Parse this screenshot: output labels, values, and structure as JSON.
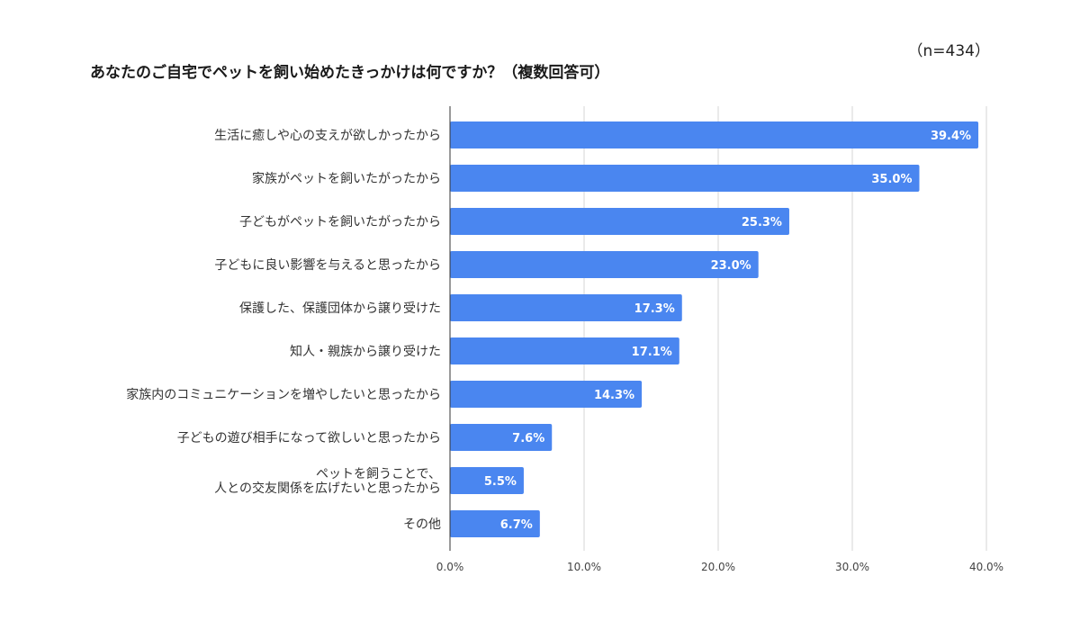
{
  "chart_data": {
    "type": "bar",
    "orientation": "horizontal",
    "title": "あなたのご自宅でペットを飼い始めたきっかけは何ですか？（複数回答可）",
    "sample_size": "（n=434）",
    "bar_color": "#4a86f0",
    "categories": [
      [
        "生活に癒しや心の支えが欲しかったから"
      ],
      [
        "家族がペットを飼いたがったから"
      ],
      [
        "子どもがペットを飼いたがったから"
      ],
      [
        "子どもに良い影響を与えると思ったから"
      ],
      [
        "保護した、保護団体から譲り受けた"
      ],
      [
        "知人・親族から譲り受けた"
      ],
      [
        "家族内のコミュニケーションを増やしたいと思ったから"
      ],
      [
        "子どもの遊び相手になって欲しいと思ったから"
      ],
      [
        "ペットを飼うことで、",
        "人との交友関係を広げたいと思ったから"
      ],
      [
        "その他"
      ]
    ],
    "values": [
      39.4,
      35.0,
      25.3,
      23.0,
      17.3,
      17.1,
      14.3,
      7.6,
      5.5,
      6.7
    ],
    "value_labels": [
      "39.4%",
      "35.0%",
      "25.3%",
      "23.0%",
      "17.3%",
      "17.1%",
      "14.3%",
      "7.6%",
      "5.5%",
      "6.7%"
    ],
    "xlim": [
      0,
      40
    ],
    "xticks": [
      0,
      10,
      20,
      30,
      40
    ],
    "xtick_labels": [
      "0.0%",
      "10.0%",
      "20.0%",
      "30.0%",
      "40.0%"
    ],
    "grid": true
  }
}
